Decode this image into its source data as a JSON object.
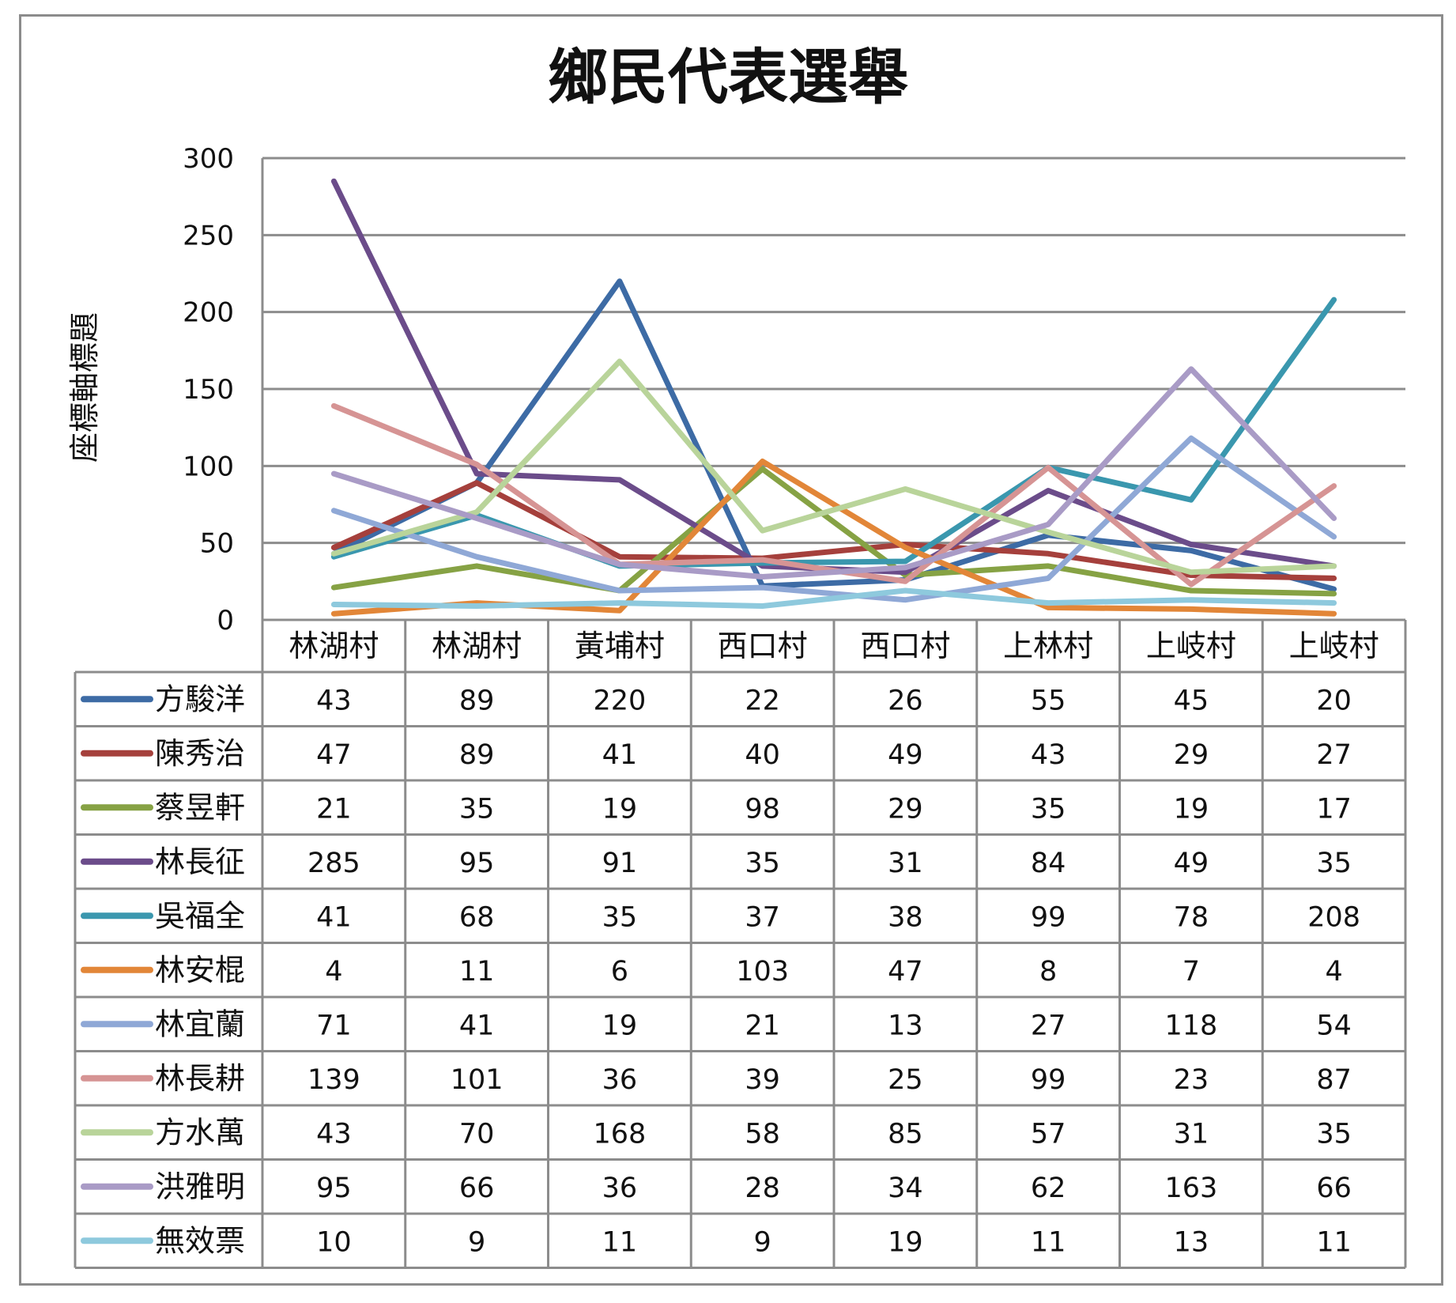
{
  "chart_data": {
    "type": "line",
    "title": "鄉民代表選舉",
    "ylabel": "座標軸標題",
    "xlabel": "",
    "ylim": [
      0,
      300
    ],
    "yticks": [
      0,
      50,
      100,
      150,
      200,
      250,
      300
    ],
    "grid": "horizontal",
    "legend": "data-table",
    "categories": [
      "林湖村",
      "林湖村",
      "黃埔村",
      "西口村",
      "西口村",
      "上林村",
      "上岐村",
      "上岐村"
    ],
    "series": [
      {
        "name": "方駿洋",
        "color": "#3d6ba5",
        "values": [
          43,
          89,
          220,
          22,
          26,
          55,
          45,
          20
        ]
      },
      {
        "name": "陳秀治",
        "color": "#a5403c",
        "values": [
          47,
          89,
          41,
          40,
          49,
          43,
          29,
          27
        ]
      },
      {
        "name": "蔡昱軒",
        "color": "#86a244",
        "values": [
          21,
          35,
          19,
          98,
          29,
          35,
          19,
          17
        ]
      },
      {
        "name": "林長征",
        "color": "#6b4c8a",
        "values": [
          285,
          95,
          91,
          35,
          31,
          84,
          49,
          35
        ]
      },
      {
        "name": "吳福全",
        "color": "#3a97ae",
        "values": [
          41,
          68,
          35,
          37,
          38,
          99,
          78,
          208
        ]
      },
      {
        "name": "林安棍",
        "color": "#e28638",
        "values": [
          4,
          11,
          6,
          103,
          47,
          8,
          7,
          4
        ]
      },
      {
        "name": "林宜蘭",
        "color": "#8fa8d6",
        "values": [
          71,
          41,
          19,
          21,
          13,
          27,
          118,
          54
        ]
      },
      {
        "name": "林長耕",
        "color": "#d69494",
        "values": [
          139,
          101,
          36,
          39,
          25,
          99,
          23,
          87
        ]
      },
      {
        "name": "方水萬",
        "color": "#b9d49a",
        "values": [
          43,
          70,
          168,
          58,
          85,
          57,
          31,
          35
        ]
      },
      {
        "name": "洪雅明",
        "color": "#a99bc6",
        "values": [
          95,
          66,
          36,
          28,
          34,
          62,
          163,
          66
        ]
      },
      {
        "name": "無效票",
        "color": "#8ec9dd",
        "values": [
          10,
          9,
          11,
          9,
          19,
          11,
          13,
          11
        ]
      }
    ]
  }
}
